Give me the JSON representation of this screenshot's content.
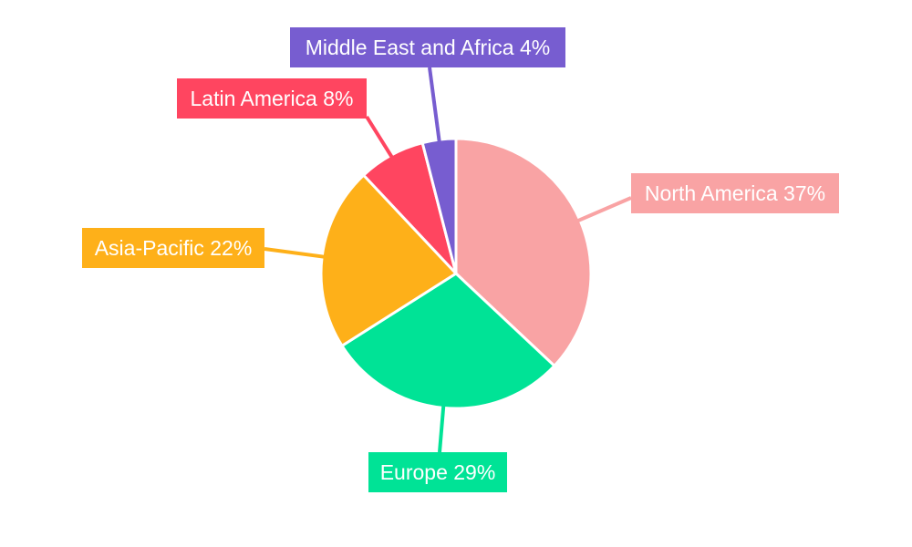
{
  "chart_data": {
    "type": "pie",
    "title": "",
    "start_angle": "12 o'clock, clockwise",
    "slices": [
      {
        "label": "North America",
        "value": 37,
        "display": "North America 37%",
        "color": "#F9A3A4"
      },
      {
        "label": "Europe",
        "value": 29,
        "display": "Europe 29%",
        "color": "#00E396"
      },
      {
        "label": "Asia-Pacific",
        "value": 22,
        "display": "Asia-Pacific 22%",
        "color": "#FEB019"
      },
      {
        "label": "Latin America",
        "value": 8,
        "display": "Latin America 8%",
        "color": "#FF4560"
      },
      {
        "label": "Middle East and Africa",
        "value": 4,
        "display": "Middle East and Africa 4%",
        "color": "#775DD0"
      }
    ],
    "legend": "none",
    "labels": "outside with leader lines"
  }
}
